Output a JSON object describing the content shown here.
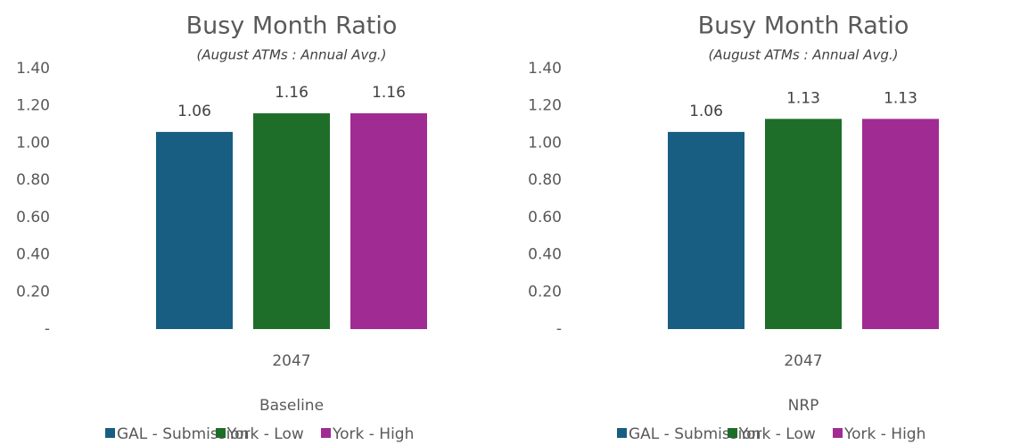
{
  "chart_data": [
    {
      "type": "bar",
      "title": "Busy Month Ratio",
      "subtitle": "(August ATMs : Annual Avg.)",
      "x_label": "Baseline",
      "categories": [
        "2047"
      ],
      "series": [
        {
          "name": "GAL - Submission",
          "color": "#175e82",
          "values": [
            1.06
          ]
        },
        {
          "name": "York - Low",
          "color": "#1e6e2a",
          "values": [
            1.16
          ]
        },
        {
          "name": "York - High",
          "color": "#a02b93",
          "values": [
            1.16
          ]
        }
      ],
      "ylim": [
        0,
        1.4
      ],
      "yticks": [
        {
          "value": 0,
          "label": "-"
        },
        {
          "value": 0.2,
          "label": "0.20"
        },
        {
          "value": 0.4,
          "label": "0.40"
        },
        {
          "value": 0.6,
          "label": "0.60"
        },
        {
          "value": 0.8,
          "label": "0.80"
        },
        {
          "value": 1.0,
          "label": "1.00"
        },
        {
          "value": 1.2,
          "label": "1.20"
        },
        {
          "value": 1.4,
          "label": "1.40"
        }
      ],
      "grid": false,
      "legend": "bottom"
    },
    {
      "type": "bar",
      "title": "Busy Month Ratio",
      "subtitle": "(August ATMs : Annual Avg.)",
      "x_label": "NRP",
      "categories": [
        "2047"
      ],
      "series": [
        {
          "name": "GAL - Submission",
          "color": "#175e82",
          "values": [
            1.06
          ]
        },
        {
          "name": "York - Low",
          "color": "#1e6e2a",
          "values": [
            1.13
          ]
        },
        {
          "name": "York - High",
          "color": "#a02b93",
          "values": [
            1.13
          ]
        }
      ],
      "ylim": [
        0,
        1.4
      ],
      "yticks": [
        {
          "value": 0,
          "label": "-"
        },
        {
          "value": 0.2,
          "label": "0.20"
        },
        {
          "value": 0.4,
          "label": "0.40"
        },
        {
          "value": 0.6,
          "label": "0.60"
        },
        {
          "value": 0.8,
          "label": "0.80"
        },
        {
          "value": 1.0,
          "label": "1.00"
        },
        {
          "value": 1.2,
          "label": "1.20"
        },
        {
          "value": 1.4,
          "label": "1.40"
        }
      ],
      "grid": false,
      "legend": "bottom"
    }
  ]
}
